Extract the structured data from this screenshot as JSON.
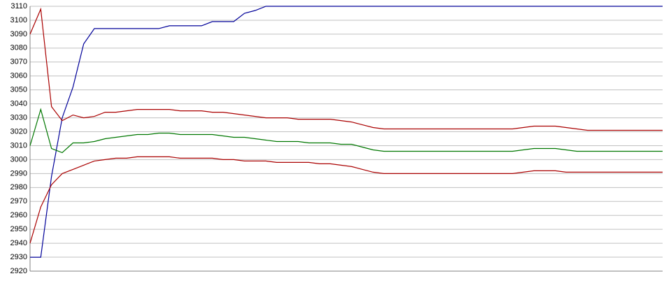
{
  "chart_data": {
    "type": "line",
    "categories": [
      null,
      null,
      null,
      null,
      null,
      null,
      null,
      null,
      null,
      null,
      null,
      null,
      null,
      null,
      null,
      null,
      null,
      null,
      null,
      null,
      null,
      null,
      null,
      null,
      null,
      null,
      null,
      null,
      null,
      null,
      null,
      null,
      null,
      null,
      null,
      null,
      null,
      null,
      null,
      null,
      null,
      null,
      null,
      null,
      null,
      null,
      null,
      null,
      null,
      null,
      null,
      null,
      null,
      null,
      null,
      null,
      null,
      null,
      null,
      null
    ],
    "series": [
      {
        "color": "#000099",
        "values": [
          2930,
          2930,
          2988,
          3030,
          3052,
          3083,
          3094,
          3094,
          3094,
          3094,
          3094,
          3094,
          3094,
          3096,
          3096,
          3096,
          3096,
          3099,
          3099,
          3099,
          3105,
          3107,
          3110,
          3110,
          3110,
          3110,
          3110,
          3110,
          3110,
          3110,
          3110,
          3110,
          3110,
          3110,
          3110,
          3110,
          3110,
          3110,
          3110,
          3110,
          3110,
          3110,
          3110,
          3110,
          3110,
          3110,
          3110,
          3110,
          3110,
          3110,
          3110,
          3110,
          3110,
          3110,
          3110,
          3110,
          3110,
          3110,
          3110,
          3110
        ]
      },
      {
        "color": "#aa0000",
        "values": [
          3090,
          3108,
          3038,
          3028,
          3032,
          3030,
          3031,
          3034,
          3034,
          3035,
          3036,
          3036,
          3036,
          3036,
          3035,
          3035,
          3035,
          3034,
          3034,
          3033,
          3032,
          3031,
          3030,
          3030,
          3030,
          3029,
          3029,
          3029,
          3029,
          3028,
          3027,
          3025,
          3023,
          3022,
          3022,
          3022,
          3022,
          3022,
          3022,
          3022,
          3022,
          3022,
          3022,
          3022,
          3022,
          3022,
          3023,
          3024,
          3024,
          3024,
          3023,
          3022,
          3021,
          3021,
          3021,
          3021,
          3021,
          3021,
          3021,
          3021
        ]
      },
      {
        "color": "#007700",
        "values": [
          3010,
          3036,
          3008,
          3005,
          3012,
          3012,
          3013,
          3015,
          3016,
          3017,
          3018,
          3018,
          3019,
          3019,
          3018,
          3018,
          3018,
          3018,
          3017,
          3016,
          3016,
          3015,
          3014,
          3013,
          3013,
          3013,
          3012,
          3012,
          3012,
          3011,
          3011,
          3009,
          3007,
          3006,
          3006,
          3006,
          3006,
          3006,
          3006,
          3006,
          3006,
          3006,
          3006,
          3006,
          3006,
          3006,
          3007,
          3008,
          3008,
          3008,
          3007,
          3006,
          3006,
          3006,
          3006,
          3006,
          3006,
          3006,
          3006,
          3006
        ]
      },
      {
        "color": "#aa0000",
        "values": [
          2940,
          2966,
          2982,
          2990,
          2993,
          2996,
          2999,
          3000,
          3001,
          3001,
          3002,
          3002,
          3002,
          3002,
          3001,
          3001,
          3001,
          3001,
          3000,
          3000,
          2999,
          2999,
          2999,
          2998,
          2998,
          2998,
          2998,
          2997,
          2997,
          2996,
          2995,
          2993,
          2991,
          2990,
          2990,
          2990,
          2990,
          2990,
          2990,
          2990,
          2990,
          2990,
          2990,
          2990,
          2990,
          2990,
          2991,
          2992,
          2992,
          2992,
          2991,
          2991,
          2991,
          2991,
          2991,
          2991,
          2991,
          2991,
          2991,
          2991
        ]
      }
    ],
    "ylim": [
      2920,
      3110
    ],
    "yticks": [
      2920,
      2930,
      2940,
      2950,
      2960,
      2970,
      2980,
      2990,
      3000,
      3010,
      3020,
      3030,
      3040,
      3050,
      3060,
      3070,
      3080,
      3090,
      3100,
      3110
    ],
    "grid": true
  }
}
